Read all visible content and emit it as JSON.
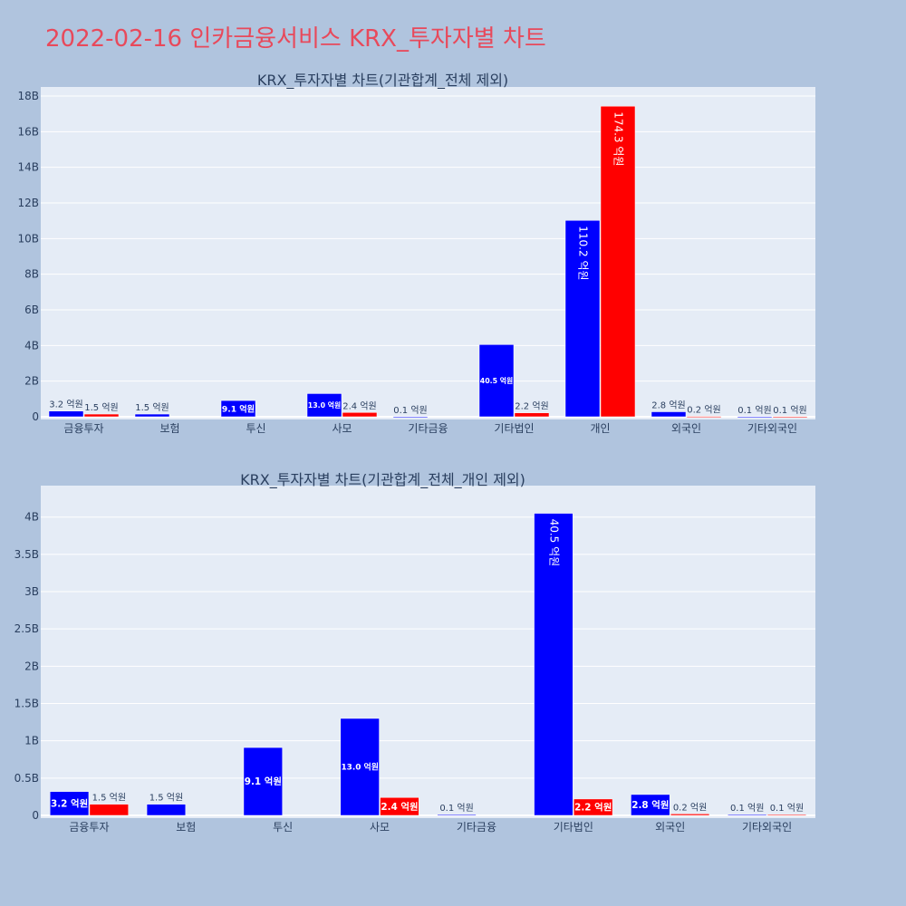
{
  "page": {
    "title": "2022-02-16 인카금융서비스 KRX_투자자별 차트"
  },
  "colors": {
    "background": "#b0c4de",
    "plot_bg": "#e5ecf6",
    "buy": "#0000ff",
    "sell": "#ff0000",
    "title": "#e8495b",
    "text": "#2a3f5f"
  },
  "chart_data": [
    {
      "type": "bar",
      "title": "KRX_투자자별 차트(기관합계_전체 제외)",
      "categories": [
        "금융투자",
        "보험",
        "투신",
        "사모",
        "기타금융",
        "기타법인",
        "개인",
        "외국인",
        "기타외국인"
      ],
      "series": [
        {
          "color": "#0000ff",
          "values": [
            320000000,
            150000000,
            910000000,
            1300000000,
            10000000,
            4050000000,
            11020000000,
            280000000,
            10000000
          ],
          "labels": [
            "3.2 억원",
            "1.5 억원",
            "9.1 억원",
            "13.0 억원",
            "0.1 억원",
            "40.5 억원",
            "110.2 억원",
            "2.8 억원",
            "0.1 억원"
          ]
        },
        {
          "color": "#ff0000",
          "values": [
            150000000,
            0,
            0,
            240000000,
            0,
            220000000,
            17430000000,
            20000000,
            10000000
          ],
          "labels": [
            "1.5 억원",
            "",
            "",
            "2.4 억원",
            "",
            "2.2 억원",
            "174.3 억원",
            "0.2 억원",
            "0.1 억원"
          ]
        }
      ],
      "ylim": [
        0,
        18000000000
      ],
      "yticks": [
        0,
        2000000000,
        4000000000,
        6000000000,
        8000000000,
        10000000000,
        12000000000,
        14000000000,
        16000000000,
        18000000000
      ],
      "ytick_labels": [
        "0",
        "2B",
        "4B",
        "6B",
        "8B",
        "10B",
        "12B",
        "14B",
        "16B",
        "18B"
      ],
      "grid": true
    },
    {
      "type": "bar",
      "title": "KRX_투자자별 차트(기관합계_전체_개인 제외)",
      "categories": [
        "금융투자",
        "보험",
        "투신",
        "사모",
        "기타금융",
        "기타법인",
        "외국인",
        "기타외국인"
      ],
      "series": [
        {
          "color": "#0000ff",
          "values": [
            320000000,
            150000000,
            910000000,
            1300000000,
            10000000,
            4050000000,
            280000000,
            10000000
          ],
          "labels": [
            "3.2 억원",
            "1.5 억원",
            "9.1 억원",
            "13.0 억원",
            "0.1 억원",
            "40.5 억원",
            "2.8 억원",
            "0.1 억원"
          ]
        },
        {
          "color": "#ff0000",
          "values": [
            150000000,
            0,
            0,
            240000000,
            0,
            220000000,
            20000000,
            10000000
          ],
          "labels": [
            "1.5 억원",
            "",
            "",
            "2.4 억원",
            "",
            "2.2 억원",
            "0.2 억원",
            "0.1 억원"
          ]
        }
      ],
      "ylim": [
        0,
        4300000000
      ],
      "yticks": [
        0,
        500000000,
        1000000000,
        1500000000,
        2000000000,
        2500000000,
        3000000000,
        3500000000,
        4000000000
      ],
      "ytick_labels": [
        "0",
        "0.5B",
        "1B",
        "1.5B",
        "2B",
        "2.5B",
        "3B",
        "3.5B",
        "4B"
      ],
      "grid": true
    }
  ]
}
